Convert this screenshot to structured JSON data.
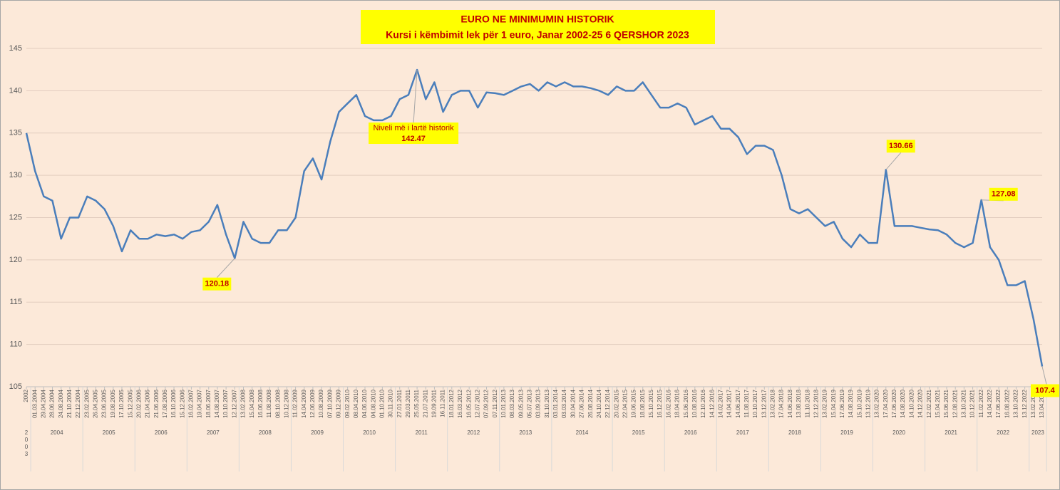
{
  "chart_data": {
    "type": "line",
    "title": "EURO NE MINIMUMIN HISTORIK",
    "subtitle": "Kursi i këmbimit lek për 1 euro, Janar 2002-25 6 QERSHOR 2023",
    "color": "#4a7ebb",
    "ylim": [
      105,
      145
    ],
    "yticks": [
      105,
      110,
      115,
      120,
      125,
      130,
      135,
      140,
      145
    ],
    "grid": true,
    "categories": [
      "2002",
      "01.03.2004",
      "29.04.2004",
      "28.06.2004",
      "24.08.2004",
      "21.10.2004",
      "22.12.2004",
      "23.02.2005",
      "26.04.2005",
      "23.06.2005",
      "19.08.2005",
      "17.10.2005",
      "15.12.2005",
      "20.02.2006",
      "21.04.2006",
      "21.06.2006",
      "17.08.2006",
      "16.10.2006",
      "15.12.2006",
      "16.02.2007",
      "19.04.2007",
      "18.06.2007",
      "14.08.2007",
      "10.10.2007",
      "12.12.2007",
      "13.02.2008",
      "15.04.2008",
      "16.06.2008",
      "11.08.2008",
      "08.10.2008",
      "10.12.2008",
      "11.02.2009",
      "14.04.2009",
      "12.06.2009",
      "10.08.2009",
      "07.10.2009",
      "09.12.2009",
      "09.02.2010",
      "08.04.2010",
      "04.06.2010",
      "04.08.2010",
      "01.10.2010",
      "30.11.2010",
      "27.01.2011",
      "29.03.2011",
      "25.05.2011",
      "21.07.2011",
      "19.09.2011",
      "16.11.2011",
      "18.01.2012",
      "16.03.2012",
      "16.05.2012",
      "12.07.2012",
      "07.09.2012",
      "07.11.2012",
      "10.01.2013",
      "08.03.2013",
      "09.05.2013",
      "05.07.2013",
      "03.09.2013",
      "31.10.2013",
      "03.01.2014",
      "03.03.2014",
      "30.04.2014",
      "27.06.2014",
      "26.08.2014",
      "24.10.2014",
      "22.12.2014",
      "20.02.2015",
      "22.04.2015",
      "19.06.2015",
      "18.08.2015",
      "15.10.2015",
      "16.12.2015",
      "16.02.2016",
      "18.04.2016",
      "15.06.2016",
      "10.08.2016",
      "12.10.2016",
      "14.12.2016",
      "14.02.2017",
      "14.04.2017",
      "14.06.2017",
      "11.08.2017",
      "10.10.2017",
      "13.12.2017",
      "13.02.2018",
      "17.04.2018",
      "14.06.2018",
      "13.08.2018",
      "11.10.2018",
      "12.12.2018",
      "13.02.2019",
      "15.04.2019",
      "17.06.2019",
      "14.08.2019",
      "15.10.2019",
      "13.12.2019",
      "13.02.2020",
      "17.04.2020",
      "17.06.2020",
      "14.08.2020",
      "14.10.2020",
      "14.12.2020",
      "12.02.2021",
      "15.04.2021",
      "15.06.2021",
      "12.08.2021",
      "13.10.2021",
      "10.12.2021",
      "11.02.2022",
      "14.04.2022",
      "17.06.2022",
      "16.08.2022",
      "13.10.2022",
      "13.12.2022",
      "13.02.2023",
      "13.04.2023"
    ],
    "values": [
      135,
      130.5,
      127.5,
      127,
      122.5,
      125,
      125,
      127.5,
      127,
      126,
      124,
      121,
      123.5,
      122.5,
      122.5,
      123,
      122.8,
      123,
      122.5,
      123.3,
      123.5,
      124.5,
      126.5,
      123,
      120.18,
      124.5,
      122.5,
      122,
      122,
      123.5,
      123.5,
      125,
      130.5,
      132,
      129.5,
      134,
      137.5,
      138.5,
      139.5,
      137,
      136.5,
      136.5,
      137,
      139,
      139.5,
      142.47,
      139,
      141,
      137.5,
      139.5,
      140,
      140,
      138,
      139.8,
      139.7,
      139.5,
      140,
      140.5,
      140.8,
      140,
      141,
      140.5,
      141,
      140.5,
      140.5,
      140.3,
      140,
      139.5,
      140.5,
      140,
      140,
      141,
      139.5,
      138,
      138,
      138.5,
      138,
      136,
      136.5,
      137,
      135.5,
      135.5,
      134.5,
      132.5,
      133.5,
      133.5,
      133,
      130,
      126,
      125.5,
      126,
      125,
      124,
      124.5,
      122.5,
      121.5,
      123,
      122,
      122,
      130.66,
      124,
      124,
      124,
      123.8,
      123.6,
      123.5,
      123,
      122,
      121.5,
      122,
      127.08,
      121.5,
      120,
      117,
      117,
      117.5,
      113,
      107.4
    ],
    "year_labels": [
      "2003",
      "2004",
      "2005",
      "2006",
      "2007",
      "2008",
      "2009",
      "2010",
      "2011",
      "2012",
      "2013",
      "2014",
      "2015",
      "2016",
      "2017",
      "2018",
      "2019",
      "2020",
      "2021",
      "2022",
      "2023"
    ],
    "point_labels": [
      {
        "at": "12.12.2007"
      },
      {
        "at": "25.05.2011",
        "note": "Niveli më i lartë historik"
      },
      {
        "at": "17.04.2020"
      },
      {
        "at": "11.02.2022"
      },
      {
        "at": "13.04.2023"
      }
    ]
  }
}
